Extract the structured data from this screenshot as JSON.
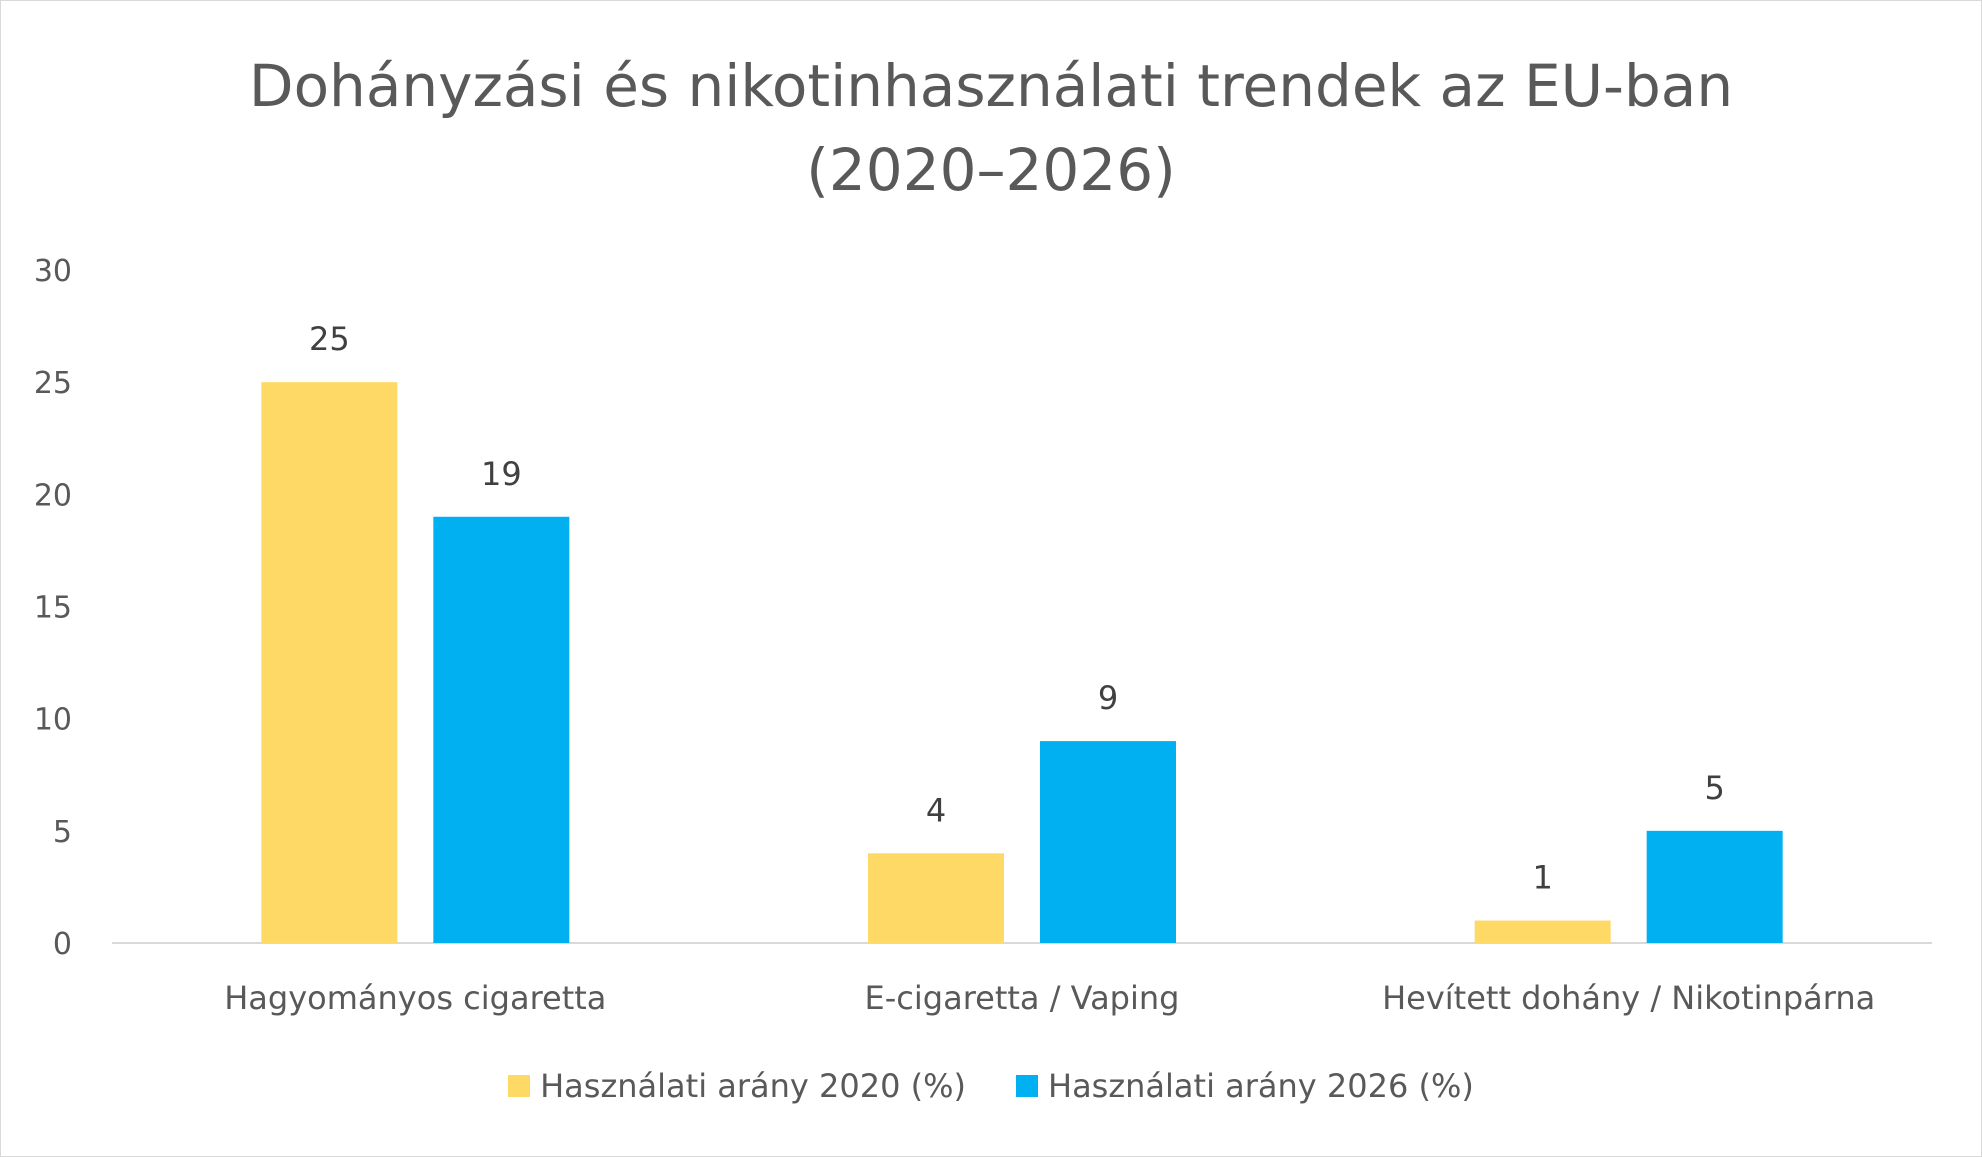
{
  "chart_data": {
    "type": "bar",
    "title_lines": [
      "Dohányzási és nikotinhasználati trendek az EU-ban",
      "(2020–2026)"
    ],
    "categories": [
      "Hagyományos cigaretta",
      "E-cigaretta / Vaping",
      "Hevített dohány / Nikotinpárna"
    ],
    "series": [
      {
        "name": "Használati arány 2020 (%)",
        "color": "#ffd966",
        "values": [
          25,
          4,
          1
        ]
      },
      {
        "name": "Használati arány 2026 (%)",
        "color": "#00b0f0",
        "values": [
          19,
          9,
          5
        ]
      }
    ],
    "ylim": [
      0,
      30
    ],
    "yticks": [
      "0",
      "5",
      "10",
      "15",
      "20",
      "25",
      "30"
    ],
    "grid": false,
    "data_labels": true,
    "legend_position": "bottom"
  }
}
